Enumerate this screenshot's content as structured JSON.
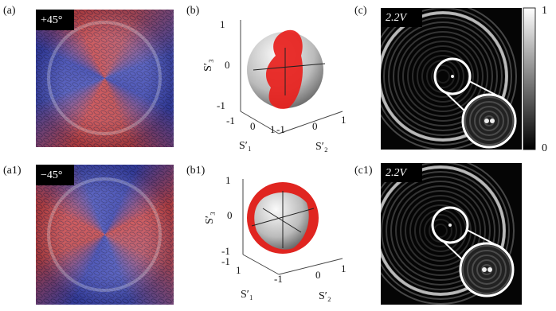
{
  "panels": {
    "a": {
      "label": "(a)",
      "tag": "+45°"
    },
    "b": {
      "label": "(b)",
      "z_ticks": [
        "1",
        "0",
        "-1"
      ],
      "z_title": "S′₃",
      "s1_ticks": [
        "-1",
        "0",
        "1"
      ],
      "s1_title": "S′₁",
      "s2_ticks": [
        "-1",
        "0",
        "1"
      ],
      "s2_title": "S′₂"
    },
    "c": {
      "label": "(c)",
      "tag": "2.2V",
      "colorbar_ticks": [
        1,
        0
      ]
    },
    "a1": {
      "label": "(a1)",
      "tag": "−45°"
    },
    "b1": {
      "label": "(b1)",
      "z_ticks": [
        "1",
        "0",
        "-1"
      ],
      "z_title": "S′₃",
      "s1_ticks": [
        "-1",
        "1"
      ],
      "s1_title": "S′₁",
      "s2_ticks": [
        "-1",
        "0",
        "1"
      ],
      "s2_title": "S′₂"
    },
    "c1": {
      "label": "(c1)",
      "tag": "2.2V"
    }
  }
}
